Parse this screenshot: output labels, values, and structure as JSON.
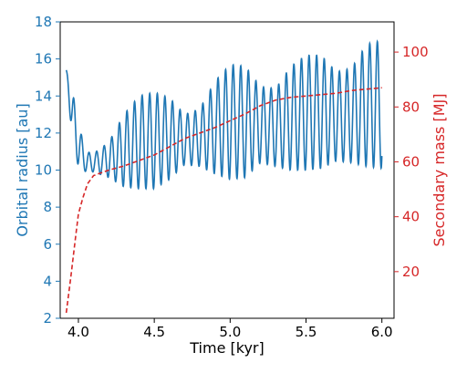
{
  "chart_data": {
    "type": "line",
    "xlabel": "Time [kyr]",
    "ylabel_left": "Orbital radius [au]",
    "ylabel_right": "Secondary mass [M$_J$]",
    "ylabel_right_display": "Secondary mass [MJ]",
    "xlim": [
      3.88,
      6.08
    ],
    "ylim_left": [
      2,
      18
    ],
    "ylim_right": [
      3,
      111
    ],
    "xticks": [
      4.0,
      4.5,
      5.0,
      5.5,
      6.0
    ],
    "xtick_labels": [
      "4.0",
      "4.5",
      "5.0",
      "5.5",
      "6.0"
    ],
    "yticks_left": [
      2,
      4,
      6,
      8,
      10,
      12,
      14,
      16,
      18
    ],
    "yticks_left_labels": [
      "2",
      "4",
      "6",
      "8",
      "10",
      "12",
      "14",
      "16",
      "18"
    ],
    "yticks_right": [
      20,
      40,
      60,
      80,
      100
    ],
    "yticks_right_labels": [
      "20",
      "40",
      "60",
      "80",
      "100"
    ],
    "grid": false,
    "colors": {
      "left": "#1f77b4",
      "right": "#d62728"
    },
    "series": [
      {
        "axis": "left",
        "style": "solid",
        "oscillation_period_kyr": 0.05,
        "x_range": [
          3.92,
          6.0
        ],
        "max_envelope": [
          [
            3.92,
            15.4
          ],
          [
            3.96,
            14.3
          ],
          [
            4.0,
            12.5
          ],
          [
            4.05,
            11.0
          ],
          [
            4.1,
            10.9
          ],
          [
            4.2,
            11.5
          ],
          [
            4.3,
            13.0
          ],
          [
            4.4,
            14.0
          ],
          [
            4.5,
            14.2
          ],
          [
            4.6,
            13.9
          ],
          [
            4.7,
            13.0
          ],
          [
            4.8,
            13.3
          ],
          [
            4.9,
            14.8
          ],
          [
            5.0,
            15.7
          ],
          [
            5.1,
            15.6
          ],
          [
            5.2,
            14.5
          ],
          [
            5.3,
            14.4
          ],
          [
            5.4,
            15.6
          ],
          [
            5.5,
            16.2
          ],
          [
            5.6,
            16.2
          ],
          [
            5.7,
            15.3
          ],
          [
            5.8,
            15.5
          ],
          [
            5.9,
            16.8
          ],
          [
            6.0,
            17.0
          ]
        ],
        "min_envelope": [
          [
            3.92,
            15.4
          ],
          [
            3.96,
            11.5
          ],
          [
            4.0,
            10.2
          ],
          [
            4.05,
            9.9
          ],
          [
            4.1,
            9.9
          ],
          [
            4.2,
            9.6
          ],
          [
            4.3,
            9.1
          ],
          [
            4.4,
            9.0
          ],
          [
            4.5,
            9.0
          ],
          [
            4.6,
            9.5
          ],
          [
            4.7,
            10.3
          ],
          [
            4.8,
            10.2
          ],
          [
            4.9,
            9.8
          ],
          [
            5.0,
            9.5
          ],
          [
            5.1,
            9.6
          ],
          [
            5.2,
            10.4
          ],
          [
            5.3,
            10.2
          ],
          [
            5.4,
            10.0
          ],
          [
            5.5,
            10.0
          ],
          [
            5.6,
            10.1
          ],
          [
            5.7,
            10.5
          ],
          [
            5.8,
            10.4
          ],
          [
            5.9,
            10.2
          ],
          [
            6.0,
            10.1
          ]
        ]
      },
      {
        "axis": "right",
        "style": "dashed",
        "x": [
          3.92,
          3.95,
          3.98,
          4.0,
          4.03,
          4.06,
          4.1,
          4.15,
          4.2,
          4.3,
          4.4,
          4.5,
          4.6,
          4.7,
          4.8,
          4.9,
          5.0,
          5.1,
          5.2,
          5.3,
          5.4,
          5.5,
          5.6,
          5.7,
          5.8,
          5.9,
          6.0
        ],
        "y": [
          5,
          18,
          32,
          41,
          47,
          52,
          55,
          56,
          57,
          58.5,
          60.5,
          62.5,
          65.5,
          68.5,
          70.5,
          72.5,
          75,
          77.5,
          80.5,
          82.5,
          83.5,
          84,
          84.5,
          85,
          86,
          86.5,
          87
        ]
      }
    ]
  }
}
